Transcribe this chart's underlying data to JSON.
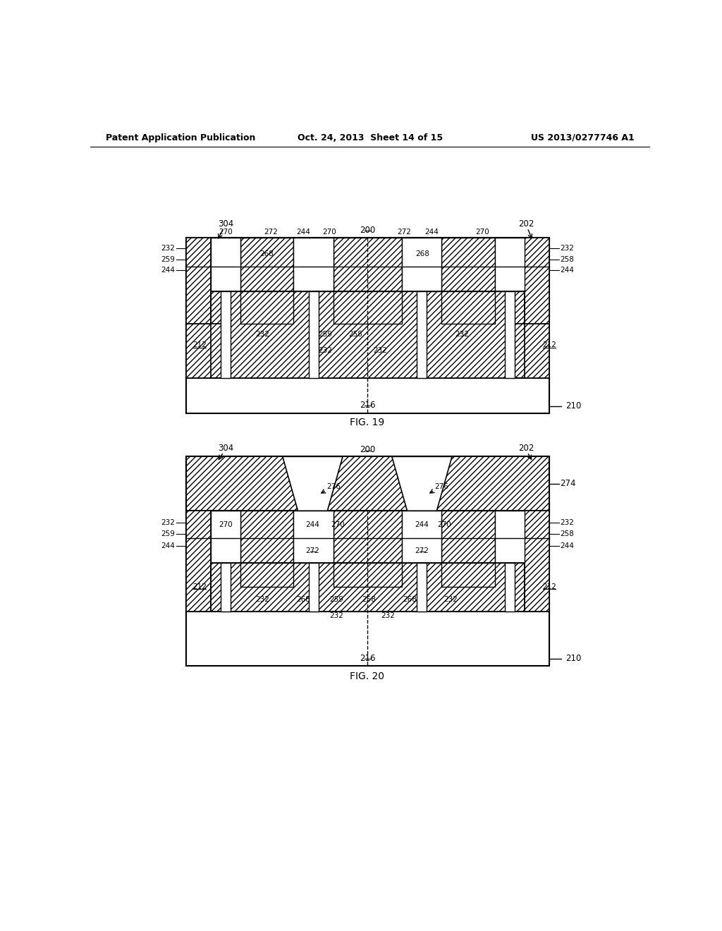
{
  "header_left": "Patent Application Publication",
  "header_mid": "Oct. 24, 2013  Sheet 14 of 15",
  "header_right": "US 2013/0277746 A1",
  "fig19_caption": "FIG. 19",
  "fig20_caption": "FIG. 20",
  "bg": "#ffffff"
}
